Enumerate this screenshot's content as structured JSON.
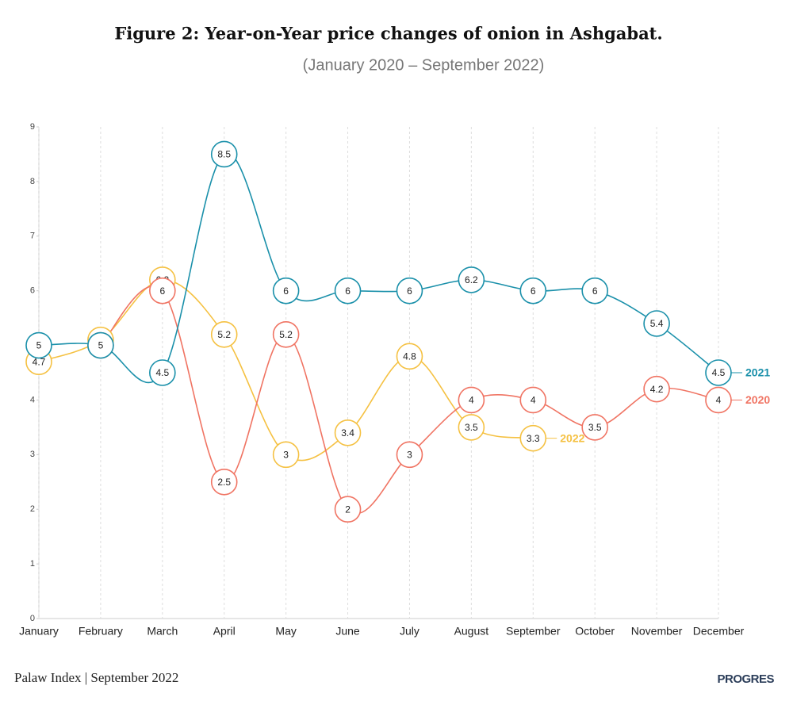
{
  "chart_data": {
    "type": "line",
    "title": "Figure 2: Year-on-Year price changes of onion in Ashgabat.",
    "subtitle": "(January 2020 – September 2022)",
    "categories": [
      "January",
      "February",
      "March",
      "April",
      "May",
      "June",
      "July",
      "August",
      "September",
      "October",
      "November",
      "December"
    ],
    "series": [
      {
        "name": "2022",
        "color": "#f5c142",
        "values": [
          4.7,
          5.1,
          6.2,
          5.2,
          3,
          3.4,
          4.8,
          3.5,
          3.3,
          null,
          null,
          null
        ]
      },
      {
        "name": "2020",
        "color": "#f07463",
        "values": [
          null,
          5,
          6,
          2.5,
          5.2,
          2,
          3,
          4,
          4,
          3.5,
          4.2,
          4
        ]
      },
      {
        "name": "2021",
        "color": "#1a90aa",
        "values": [
          5,
          5,
          4.5,
          8.5,
          6,
          6,
          6,
          6.2,
          6,
          6,
          5.4,
          4.5
        ]
      }
    ],
    "ylim": [
      0,
      9
    ],
    "yticks": [
      0,
      1,
      2,
      3,
      4,
      5,
      6,
      7,
      8,
      9
    ],
    "grid": "x",
    "source": "Palaw Index | September 2022",
    "logo": "PROGRES"
  }
}
